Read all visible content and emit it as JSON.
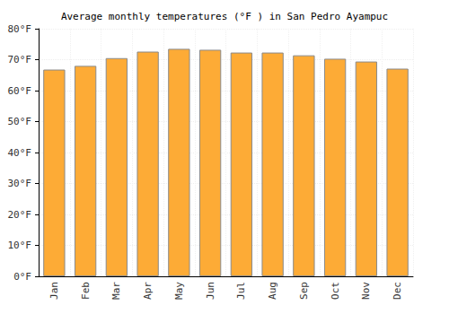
{
  "chart_data": {
    "type": "bar",
    "title": "Average monthly temperatures (°F ) in San Pedro Ayampuc",
    "categories": [
      "Jan",
      "Feb",
      "Mar",
      "Apr",
      "May",
      "Jun",
      "Jul",
      "Aug",
      "Sep",
      "Oct",
      "Nov",
      "Dec"
    ],
    "values": [
      66.8,
      68.0,
      70.5,
      72.6,
      73.5,
      73.2,
      72.3,
      72.3,
      71.4,
      70.3,
      69.4,
      67.1
    ],
    "color": "#fdab36",
    "ylim": [
      0,
      80
    ],
    "yticks": [
      {
        "value": 0,
        "label": "0°F"
      },
      {
        "value": 10,
        "label": "10°F"
      },
      {
        "value": 20,
        "label": "20°F"
      },
      {
        "value": 30,
        "label": "30°F"
      },
      {
        "value": 40,
        "label": "40°F"
      },
      {
        "value": 50,
        "label": "50°F"
      },
      {
        "value": 60,
        "label": "60°F"
      },
      {
        "value": 70,
        "label": "70°F"
      },
      {
        "value": 80,
        "label": "80°F"
      }
    ],
    "grid": true
  }
}
